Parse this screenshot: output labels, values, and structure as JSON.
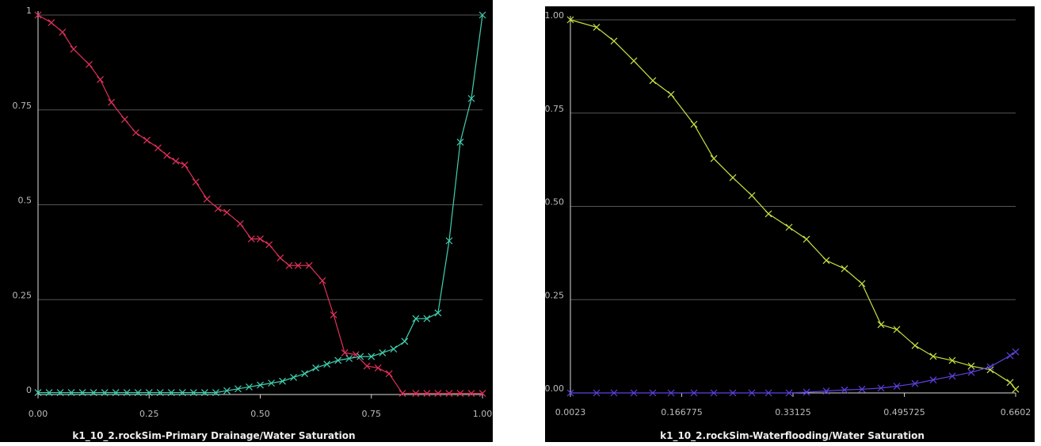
{
  "chart_data": [
    {
      "type": "line",
      "title": "k1_10_2.rockSim-Primary Drainage/Water Saturation",
      "xlim": [
        0,
        1
      ],
      "ylim": [
        0,
        1
      ],
      "xticks": [
        {
          "value": 0,
          "label": "0.00"
        },
        {
          "value": 0.25,
          "label": "0.25"
        },
        {
          "value": 0.5,
          "label": "0.50"
        },
        {
          "value": 0.75,
          "label": "0.75"
        },
        {
          "value": 1,
          "label": "1.00"
        }
      ],
      "yticks": [
        0,
        0.25,
        0.5,
        0.75,
        1
      ],
      "grid": true,
      "series": [
        {
          "color": "#e0305a",
          "x": [
            0,
            0.03,
            0.055,
            0.08,
            0.115,
            0.14,
            0.165,
            0.195,
            0.22,
            0.245,
            0.27,
            0.29,
            0.31,
            0.33,
            0.355,
            0.38,
            0.405,
            0.425,
            0.455,
            0.48,
            0.5,
            0.52,
            0.545,
            0.565,
            0.585,
            0.61,
            0.64,
            0.665,
            0.69,
            0.715,
            0.74,
            0.765,
            0.79,
            0.82,
            0.85,
            0.875,
            0.9,
            0.925,
            0.95,
            0.975,
            1
          ],
          "values": [
            1,
            0.98,
            0.955,
            0.91,
            0.87,
            0.83,
            0.77,
            0.725,
            0.69,
            0.67,
            0.65,
            0.63,
            0.615,
            0.605,
            0.56,
            0.515,
            0.49,
            0.48,
            0.45,
            0.41,
            0.41,
            0.395,
            0.36,
            0.34,
            0.34,
            0.34,
            0.3,
            0.21,
            0.11,
            0.105,
            0.075,
            0.07,
            0.055,
            0.003,
            0.003,
            0.003,
            0.003,
            0.003,
            0.003,
            0.003,
            0.003
          ]
        },
        {
          "color": "#40d0b0",
          "x": [
            0,
            0.025,
            0.05,
            0.075,
            0.1,
            0.125,
            0.15,
            0.175,
            0.2,
            0.225,
            0.25,
            0.275,
            0.3,
            0.325,
            0.35,
            0.375,
            0.4,
            0.425,
            0.45,
            0.475,
            0.5,
            0.525,
            0.55,
            0.575,
            0.6,
            0.625,
            0.65,
            0.675,
            0.7,
            0.725,
            0.75,
            0.775,
            0.8,
            0.825,
            0.85,
            0.875,
            0.9,
            0.925,
            0.95,
            0.975,
            1
          ],
          "values": [
            0.005,
            0.005,
            0.005,
            0.005,
            0.005,
            0.005,
            0.005,
            0.005,
            0.005,
            0.005,
            0.005,
            0.005,
            0.005,
            0.005,
            0.005,
            0.005,
            0.005,
            0.01,
            0.015,
            0.02,
            0.025,
            0.03,
            0.035,
            0.045,
            0.055,
            0.07,
            0.08,
            0.09,
            0.095,
            0.1,
            0.1,
            0.11,
            0.12,
            0.14,
            0.2,
            0.2,
            0.215,
            0.405,
            0.665,
            0.78,
            1
          ]
        }
      ]
    },
    {
      "type": "line",
      "title": "k1_10_2.rockSim-Waterflooding/Water Saturation",
      "xlim": [
        0.0023,
        0.6602
      ],
      "ylim": [
        0,
        1
      ],
      "xticks": [
        0.0023,
        0.166775,
        0.33125,
        0.495725,
        0.6602
      ],
      "yticks": [
        {
          "value": 0,
          "label": "0.00"
        },
        {
          "value": 0.25,
          "label": "0.25"
        },
        {
          "value": 0.5,
          "label": "0.50"
        },
        {
          "value": 0.75,
          "label": "0.75"
        },
        {
          "value": 1,
          "label": "1.00"
        }
      ],
      "grid": true,
      "x": [
        0.0023,
        0.0409,
        0.0667,
        0.096,
        0.124,
        0.151,
        0.1849,
        0.2142,
        0.2423,
        0.2704,
        0.295,
        0.3254,
        0.3512,
        0.3804,
        0.4073,
        0.4331,
        0.4612,
        0.4846,
        0.5115,
        0.5384,
        0.5665,
        0.5946,
        0.6227,
        0.652,
        0.6602
      ],
      "series": [
        {
          "color": "#c8e040",
          "values": [
            1,
            0.98,
            0.943,
            0.89,
            0.837,
            0.8,
            0.72,
            0.628,
            0.577,
            0.529,
            0.48,
            0.444,
            0.412,
            0.355,
            0.333,
            0.293,
            0.183,
            0.17,
            0.127,
            0.098,
            0.087,
            0.072,
            0.062,
            0.028,
            0.01
          ]
        },
        {
          "color": "#6040e0",
          "values": [
            0,
            0,
            0,
            0,
            0,
            0,
            0,
            0,
            0,
            0,
            0,
            0,
            0.002,
            0.005,
            0.008,
            0.01,
            0.013,
            0.018,
            0.025,
            0.035,
            0.045,
            0.055,
            0.07,
            0.1,
            0.11
          ]
        }
      ]
    }
  ]
}
